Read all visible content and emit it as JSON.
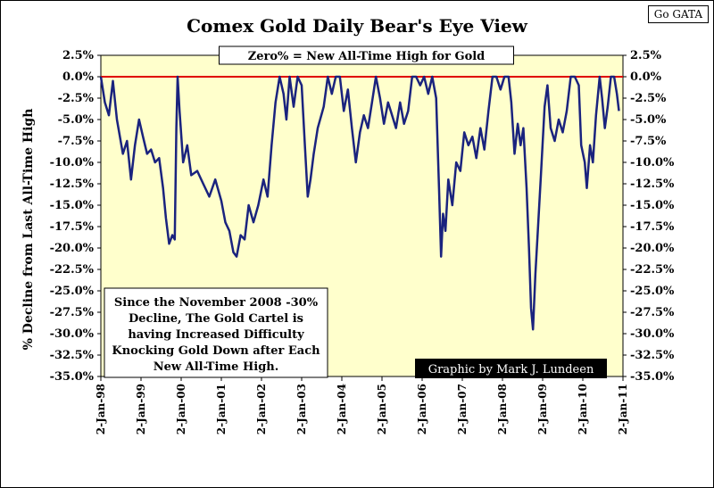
{
  "corner_tag": "Go GATA",
  "chart_data": {
    "type": "line",
    "title": "Comex Gold Daily Bear's Eye View",
    "ylabel": "% Decline from Last All-Time High",
    "xlabel": "",
    "ylim": [
      -35.0,
      2.5
    ],
    "y_ticks": [
      "2.5%",
      "0.0%",
      "-2.5%",
      "-5.0%",
      "-7.5%",
      "-10.0%",
      "-12.5%",
      "-15.0%",
      "-17.5%",
      "-20.0%",
      "-22.5%",
      "-25.0%",
      "-27.5%",
      "-30.0%",
      "-32.5%",
      "-35.0%"
    ],
    "x_ticks": [
      "2-Jan-98",
      "2-Jan-99",
      "2-Jan-00",
      "2-Jan-01",
      "2-Jan-02",
      "2-Jan-03",
      "2-Jan-04",
      "2-Jan-05",
      "2-Jan-06",
      "2-Jan-07",
      "2-Jan-08",
      "2-Jan-09",
      "2-Jan-10",
      "2-Jan-11"
    ],
    "xlim_years": [
      1998.0,
      2011.0
    ],
    "reference_line": {
      "y": 0.0,
      "color": "#e00000"
    },
    "series": [
      {
        "color": "#1a237e",
        "points": [
          [
            1998.0,
            0.0
          ],
          [
            1998.1,
            -3.0
          ],
          [
            1998.2,
            -4.5
          ],
          [
            1998.3,
            -0.5
          ],
          [
            1998.4,
            -5.0
          ],
          [
            1998.55,
            -9.0
          ],
          [
            1998.65,
            -7.5
          ],
          [
            1998.75,
            -12.0
          ],
          [
            1998.85,
            -8.0
          ],
          [
            1998.95,
            -5.0
          ],
          [
            1999.05,
            -7.0
          ],
          [
            1999.15,
            -9.0
          ],
          [
            1999.25,
            -8.5
          ],
          [
            1999.35,
            -10.0
          ],
          [
            1999.45,
            -9.5
          ],
          [
            1999.55,
            -13.0
          ],
          [
            1999.62,
            -16.5
          ],
          [
            1999.7,
            -19.5
          ],
          [
            1999.78,
            -18.5
          ],
          [
            1999.84,
            -19.0
          ],
          [
            1999.88,
            -6.0
          ],
          [
            1999.91,
            0.0
          ],
          [
            1999.96,
            -4.0
          ],
          [
            2000.05,
            -10.0
          ],
          [
            2000.15,
            -8.0
          ],
          [
            2000.25,
            -11.5
          ],
          [
            2000.4,
            -11.0
          ],
          [
            2000.55,
            -12.5
          ],
          [
            2000.7,
            -14.0
          ],
          [
            2000.85,
            -12.0
          ],
          [
            2001.0,
            -14.5
          ],
          [
            2001.1,
            -17.0
          ],
          [
            2001.2,
            -18.0
          ],
          [
            2001.3,
            -20.5
          ],
          [
            2001.38,
            -21.0
          ],
          [
            2001.48,
            -18.5
          ],
          [
            2001.58,
            -19.0
          ],
          [
            2001.68,
            -15.0
          ],
          [
            2001.8,
            -17.0
          ],
          [
            2001.92,
            -15.0
          ],
          [
            2002.05,
            -12.0
          ],
          [
            2002.15,
            -14.0
          ],
          [
            2002.25,
            -8.0
          ],
          [
            2002.35,
            -3.0
          ],
          [
            2002.45,
            0.0
          ],
          [
            2002.55,
            -2.0
          ],
          [
            2002.62,
            -5.0
          ],
          [
            2002.7,
            0.0
          ],
          [
            2002.8,
            -3.5
          ],
          [
            2002.9,
            0.0
          ],
          [
            2003.0,
            -1.0
          ],
          [
            2003.08,
            -8.0
          ],
          [
            2003.15,
            -14.0
          ],
          [
            2003.22,
            -12.0
          ],
          [
            2003.3,
            -9.0
          ],
          [
            2003.4,
            -6.0
          ],
          [
            2003.55,
            -3.5
          ],
          [
            2003.65,
            0.0
          ],
          [
            2003.75,
            -2.0
          ],
          [
            2003.85,
            0.0
          ],
          [
            2003.95,
            0.0
          ],
          [
            2004.05,
            -4.0
          ],
          [
            2004.15,
            -1.5
          ],
          [
            2004.25,
            -6.0
          ],
          [
            2004.35,
            -10.0
          ],
          [
            2004.45,
            -6.5
          ],
          [
            2004.55,
            -4.5
          ],
          [
            2004.65,
            -6.0
          ],
          [
            2004.75,
            -3.0
          ],
          [
            2004.85,
            0.0
          ],
          [
            2004.95,
            -2.5
          ],
          [
            2005.05,
            -5.5
          ],
          [
            2005.15,
            -3.0
          ],
          [
            2005.25,
            -4.5
          ],
          [
            2005.35,
            -6.0
          ],
          [
            2005.45,
            -3.0
          ],
          [
            2005.55,
            -5.5
          ],
          [
            2005.65,
            -4.0
          ],
          [
            2005.75,
            0.0
          ],
          [
            2005.85,
            0.0
          ],
          [
            2005.95,
            -1.0
          ],
          [
            2006.05,
            0.0
          ],
          [
            2006.15,
            -2.0
          ],
          [
            2006.25,
            0.0
          ],
          [
            2006.35,
            -2.5
          ],
          [
            2006.42,
            -13.0
          ],
          [
            2006.47,
            -21.0
          ],
          [
            2006.52,
            -16.0
          ],
          [
            2006.58,
            -18.0
          ],
          [
            2006.65,
            -12.0
          ],
          [
            2006.75,
            -15.0
          ],
          [
            2006.85,
            -10.0
          ],
          [
            2006.95,
            -11.0
          ],
          [
            2007.05,
            -6.5
          ],
          [
            2007.15,
            -8.0
          ],
          [
            2007.25,
            -7.0
          ],
          [
            2007.35,
            -9.5
          ],
          [
            2007.45,
            -6.0
          ],
          [
            2007.55,
            -8.5
          ],
          [
            2007.65,
            -4.0
          ],
          [
            2007.75,
            0.0
          ],
          [
            2007.85,
            0.0
          ],
          [
            2007.95,
            -1.5
          ],
          [
            2008.05,
            0.0
          ],
          [
            2008.15,
            0.0
          ],
          [
            2008.22,
            -3.0
          ],
          [
            2008.3,
            -9.0
          ],
          [
            2008.38,
            -5.5
          ],
          [
            2008.45,
            -8.0
          ],
          [
            2008.52,
            -6.0
          ],
          [
            2008.6,
            -13.0
          ],
          [
            2008.66,
            -20.0
          ],
          [
            2008.71,
            -27.0
          ],
          [
            2008.76,
            -29.5
          ],
          [
            2008.82,
            -23.0
          ],
          [
            2008.88,
            -18.0
          ],
          [
            2008.95,
            -12.0
          ],
          [
            2009.05,
            -3.5
          ],
          [
            2009.12,
            -1.0
          ],
          [
            2009.2,
            -6.0
          ],
          [
            2009.3,
            -7.5
          ],
          [
            2009.4,
            -5.0
          ],
          [
            2009.5,
            -6.5
          ],
          [
            2009.6,
            -4.0
          ],
          [
            2009.7,
            0.0
          ],
          [
            2009.8,
            0.0
          ],
          [
            2009.9,
            -1.0
          ],
          [
            2009.96,
            -8.0
          ],
          [
            2010.05,
            -10.0
          ],
          [
            2010.1,
            -13.0
          ],
          [
            2010.18,
            -8.0
          ],
          [
            2010.25,
            -10.0
          ],
          [
            2010.33,
            -4.5
          ],
          [
            2010.42,
            0.0
          ],
          [
            2010.48,
            -2.5
          ],
          [
            2010.55,
            -6.0
          ],
          [
            2010.62,
            -3.5
          ],
          [
            2010.7,
            0.0
          ],
          [
            2010.78,
            0.0
          ],
          [
            2010.85,
            -2.0
          ],
          [
            2010.9,
            -4.0
          ]
        ]
      }
    ]
  },
  "legend_box": "Zero% = New All-Time High for Gold",
  "annotation": {
    "lines": [
      "Since the November 2008 -30%",
      "Decline, The Gold Cartel is",
      "having Increased Difficulty",
      "Knocking Gold Down after Each",
      "New All-Time High."
    ]
  },
  "credit": "Graphic by Mark J. Lundeen",
  "colors": {
    "plot_bg": "#ffffcc",
    "line": "#1a237e",
    "zero_line": "#e00000",
    "credit_bg": "#000000",
    "credit_text": "#ffffff"
  }
}
